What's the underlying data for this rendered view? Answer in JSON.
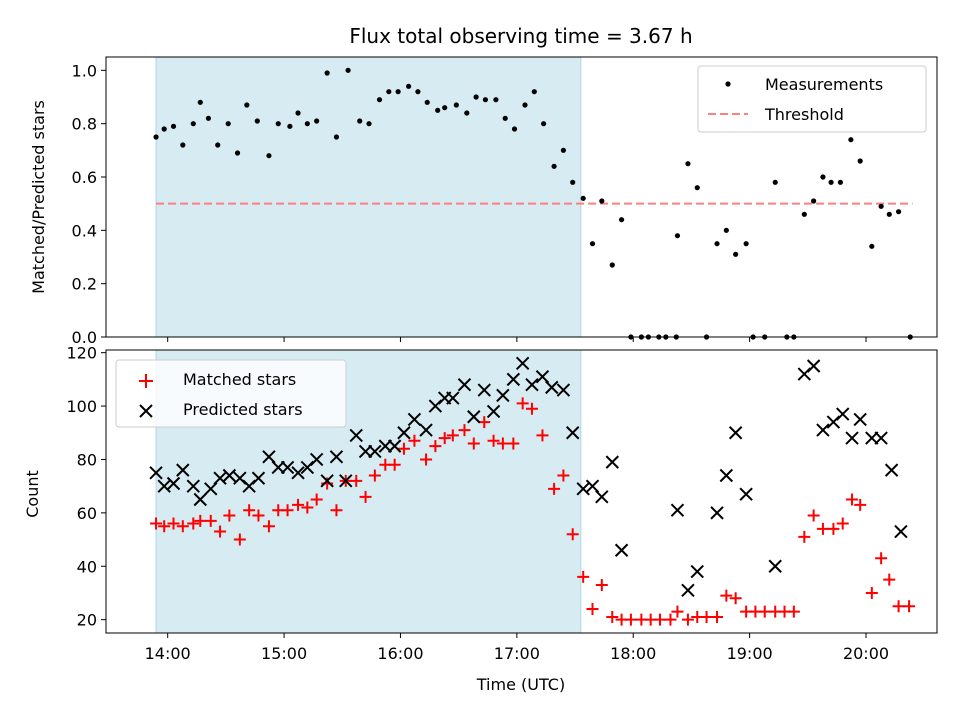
{
  "chart_data": {
    "title": "Flux total observing time = 3.67 h",
    "xlabel": "Time (UTC)",
    "x_tick_labels": [
      "14:00",
      "15:00",
      "16:00",
      "17:00",
      "18:00",
      "19:00",
      "20:00"
    ],
    "x_ticks_hours": [
      14,
      15,
      16,
      17,
      18,
      19,
      20
    ],
    "xlim_hours": [
      13.47,
      20.61
    ],
    "shaded_interval_hours": [
      13.9,
      17.55
    ],
    "colors": {
      "shade": "#add8e6",
      "measurements": "#000000",
      "threshold": "#ff7f7f",
      "matched": "#ff0000",
      "predicted": "#000000"
    },
    "panels": [
      {
        "type": "scatter",
        "ylabel": "Matched/Predicted stars",
        "ylim": [
          0,
          1.05
        ],
        "y_ticks": [
          0,
          0.2,
          0.4,
          0.6,
          0.8,
          1.0
        ],
        "y_tick_labels": [
          "0.0",
          "0.2",
          "0.4",
          "0.6",
          "0.8",
          "1.0"
        ],
        "legend": {
          "position": "upper right",
          "labels": [
            "Measurements",
            "Threshold"
          ]
        },
        "threshold": {
          "name": "Threshold",
          "y": 0.5,
          "x_range": [
            13.9,
            20.4
          ]
        },
        "series": [
          {
            "name": "Measurements",
            "marker": "dot",
            "points": [
              [
                13.9,
                0.75
              ],
              [
                13.97,
                0.78
              ],
              [
                14.05,
                0.79
              ],
              [
                14.13,
                0.72
              ],
              [
                14.22,
                0.8
              ],
              [
                14.28,
                0.88
              ],
              [
                14.35,
                0.82
              ],
              [
                14.43,
                0.72
              ],
              [
                14.52,
                0.8
              ],
              [
                14.6,
                0.69
              ],
              [
                14.68,
                0.87
              ],
              [
                14.77,
                0.81
              ],
              [
                14.87,
                0.68
              ],
              [
                14.95,
                0.8
              ],
              [
                15.05,
                0.79
              ],
              [
                15.12,
                0.84
              ],
              [
                15.2,
                0.8
              ],
              [
                15.28,
                0.81
              ],
              [
                15.37,
                0.99
              ],
              [
                15.45,
                0.75
              ],
              [
                15.55,
                1.0
              ],
              [
                15.65,
                0.81
              ],
              [
                15.73,
                0.8
              ],
              [
                15.82,
                0.89
              ],
              [
                15.9,
                0.92
              ],
              [
                15.98,
                0.92
              ],
              [
                16.07,
                0.94
              ],
              [
                16.15,
                0.92
              ],
              [
                16.23,
                0.88
              ],
              [
                16.32,
                0.85
              ],
              [
                16.38,
                0.86
              ],
              [
                16.48,
                0.87
              ],
              [
                16.57,
                0.84
              ],
              [
                16.65,
                0.9
              ],
              [
                16.73,
                0.89
              ],
              [
                16.82,
                0.89
              ],
              [
                16.9,
                0.82
              ],
              [
                16.98,
                0.78
              ],
              [
                17.07,
                0.87
              ],
              [
                17.15,
                0.92
              ],
              [
                17.23,
                0.8
              ],
              [
                17.32,
                0.64
              ],
              [
                17.4,
                0.7
              ],
              [
                17.48,
                0.58
              ],
              [
                17.57,
                0.52
              ],
              [
                17.65,
                0.35
              ],
              [
                17.73,
                0.51
              ],
              [
                17.82,
                0.27
              ],
              [
                17.9,
                0.44
              ],
              [
                17.98,
                0.0
              ],
              [
                18.07,
                0.0
              ],
              [
                18.13,
                0.0
              ],
              [
                18.22,
                0.0
              ],
              [
                18.28,
                0.0
              ],
              [
                18.37,
                0.0
              ],
              [
                18.38,
                0.38
              ],
              [
                18.47,
                0.65
              ],
              [
                18.55,
                0.56
              ],
              [
                18.63,
                0.0
              ],
              [
                18.72,
                0.35
              ],
              [
                18.8,
                0.4
              ],
              [
                18.88,
                0.31
              ],
              [
                18.97,
                0.35
              ],
              [
                19.03,
                0.0
              ],
              [
                19.13,
                0.0
              ],
              [
                19.22,
                0.58
              ],
              [
                19.32,
                0.0
              ],
              [
                19.38,
                0.0
              ],
              [
                19.47,
                0.46
              ],
              [
                19.55,
                0.51
              ],
              [
                19.63,
                0.6
              ],
              [
                19.7,
                0.58
              ],
              [
                19.78,
                0.58
              ],
              [
                19.87,
                0.74
              ],
              [
                19.95,
                0.66
              ],
              [
                20.05,
                0.34
              ],
              [
                20.13,
                0.49
              ],
              [
                20.2,
                0.46
              ],
              [
                20.28,
                0.47
              ],
              [
                20.38,
                0.0
              ]
            ]
          }
        ]
      },
      {
        "type": "scatter",
        "ylabel": "Count",
        "ylim": [
          15,
          121
        ],
        "y_ticks": [
          20,
          40,
          60,
          80,
          100,
          120
        ],
        "y_tick_labels": [
          "20",
          "40",
          "60",
          "80",
          "100",
          "120"
        ],
        "legend": {
          "position": "upper left",
          "labels": [
            "Matched stars",
            "Predicted stars"
          ]
        },
        "series": [
          {
            "name": "Matched stars",
            "marker": "plus",
            "points": [
              [
                13.9,
                56
              ],
              [
                13.97,
                55
              ],
              [
                14.05,
                56
              ],
              [
                14.13,
                55
              ],
              [
                14.22,
                56
              ],
              [
                14.28,
                57
              ],
              [
                14.37,
                57
              ],
              [
                14.45,
                53
              ],
              [
                14.53,
                59
              ],
              [
                14.62,
                50
              ],
              [
                14.7,
                61
              ],
              [
                14.78,
                59
              ],
              [
                14.87,
                55
              ],
              [
                14.95,
                61
              ],
              [
                15.03,
                61
              ],
              [
                15.12,
                63
              ],
              [
                15.2,
                62
              ],
              [
                15.28,
                65
              ],
              [
                15.37,
                71
              ],
              [
                15.45,
                61
              ],
              [
                15.53,
                72
              ],
              [
                15.62,
                72
              ],
              [
                15.7,
                66
              ],
              [
                15.78,
                74
              ],
              [
                15.87,
                78
              ],
              [
                15.95,
                78
              ],
              [
                16.03,
                84
              ],
              [
                16.12,
                87
              ],
              [
                16.22,
                80
              ],
              [
                16.3,
                85
              ],
              [
                16.38,
                88
              ],
              [
                16.45,
                89
              ],
              [
                16.55,
                91
              ],
              [
                16.63,
                86
              ],
              [
                16.72,
                94
              ],
              [
                16.8,
                87
              ],
              [
                16.88,
                86
              ],
              [
                16.97,
                86
              ],
              [
                17.05,
                101
              ],
              [
                17.13,
                99
              ],
              [
                17.22,
                89
              ],
              [
                17.32,
                69
              ],
              [
                17.4,
                74
              ],
              [
                17.48,
                52
              ],
              [
                17.57,
                36
              ],
              [
                17.65,
                24
              ],
              [
                17.73,
                33
              ],
              [
                17.82,
                21
              ],
              [
                17.9,
                20
              ],
              [
                17.98,
                20
              ],
              [
                18.07,
                20
              ],
              [
                18.15,
                20
              ],
              [
                18.23,
                20
              ],
              [
                18.32,
                20
              ],
              [
                18.38,
                23
              ],
              [
                18.47,
                20
              ],
              [
                18.55,
                21
              ],
              [
                18.63,
                21
              ],
              [
                18.72,
                21
              ],
              [
                18.8,
                29
              ],
              [
                18.88,
                28
              ],
              [
                18.97,
                23
              ],
              [
                19.05,
                23
              ],
              [
                19.13,
                23
              ],
              [
                19.22,
                23
              ],
              [
                19.3,
                23
              ],
              [
                19.38,
                23
              ],
              [
                19.47,
                51
              ],
              [
                19.55,
                59
              ],
              [
                19.63,
                54
              ],
              [
                19.72,
                54
              ],
              [
                19.8,
                56
              ],
              [
                19.88,
                65
              ],
              [
                19.95,
                63
              ],
              [
                20.05,
                30
              ],
              [
                20.13,
                43
              ],
              [
                20.2,
                35
              ],
              [
                20.28,
                25
              ],
              [
                20.37,
                25
              ]
            ]
          },
          {
            "name": "Predicted stars",
            "marker": "x",
            "points": [
              [
                13.9,
                75
              ],
              [
                13.97,
                70
              ],
              [
                14.05,
                71
              ],
              [
                14.13,
                76
              ],
              [
                14.22,
                70
              ],
              [
                14.28,
                65
              ],
              [
                14.37,
                69
              ],
              [
                14.45,
                73
              ],
              [
                14.53,
                74
              ],
              [
                14.62,
                73
              ],
              [
                14.7,
                70
              ],
              [
                14.78,
                73
              ],
              [
                14.87,
                81
              ],
              [
                14.95,
                77
              ],
              [
                15.03,
                77
              ],
              [
                15.12,
                75
              ],
              [
                15.2,
                77
              ],
              [
                15.28,
                80
              ],
              [
                15.37,
                72
              ],
              [
                15.45,
                81
              ],
              [
                15.53,
                72
              ],
              [
                15.62,
                89
              ],
              [
                15.7,
                83
              ],
              [
                15.78,
                83
              ],
              [
                15.87,
                85
              ],
              [
                15.95,
                85
              ],
              [
                16.03,
                90
              ],
              [
                16.12,
                95
              ],
              [
                16.22,
                91
              ],
              [
                16.3,
                100
              ],
              [
                16.38,
                103
              ],
              [
                16.45,
                103
              ],
              [
                16.55,
                108
              ],
              [
                16.63,
                96
              ],
              [
                16.72,
                106
              ],
              [
                16.8,
                98
              ],
              [
                16.88,
                104
              ],
              [
                16.97,
                110
              ],
              [
                17.05,
                116
              ],
              [
                17.13,
                108
              ],
              [
                17.22,
                111
              ],
              [
                17.3,
                107
              ],
              [
                17.4,
                106
              ],
              [
                17.48,
                90
              ],
              [
                17.57,
                69
              ],
              [
                17.65,
                70
              ],
              [
                17.73,
                66
              ],
              [
                17.82,
                79
              ],
              [
                17.9,
                46
              ],
              [
                18.38,
                61
              ],
              [
                18.47,
                31
              ],
              [
                18.55,
                38
              ],
              [
                18.72,
                60
              ],
              [
                18.8,
                74
              ],
              [
                18.88,
                90
              ],
              [
                18.97,
                67
              ],
              [
                19.22,
                40
              ],
              [
                19.47,
                112
              ],
              [
                19.55,
                115
              ],
              [
                19.63,
                91
              ],
              [
                19.72,
                94
              ],
              [
                19.8,
                97
              ],
              [
                19.88,
                88
              ],
              [
                19.95,
                95
              ],
              [
                20.05,
                88
              ],
              [
                20.13,
                88
              ],
              [
                20.22,
                76
              ],
              [
                20.3,
                53
              ]
            ]
          }
        ]
      }
    ]
  }
}
